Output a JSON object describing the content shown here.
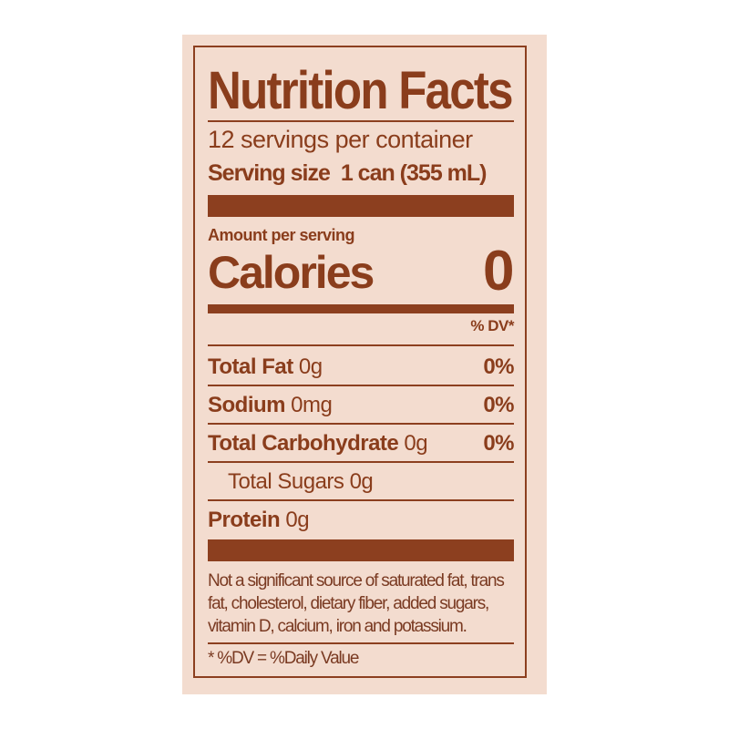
{
  "label": {
    "title": "Nutrition Facts",
    "servings_per_container": "12 servings per container",
    "serving_size_label": "Serving size",
    "serving_size_value": "1 can (355 mL)",
    "amount_per_serving": "Amount per serving",
    "calories_label": "Calories",
    "calories_value": "0",
    "dv_header": "% DV*",
    "nutrients": [
      {
        "name": "Total Fat",
        "amount": "0g",
        "dv": "0%"
      },
      {
        "name": "Sodium",
        "amount": "0mg",
        "dv": "0%"
      },
      {
        "name": "Total Carbohydrate",
        "amount": "0g",
        "dv": "0%"
      },
      {
        "name": "Total Sugars",
        "amount": "0g"
      },
      {
        "name": "Protein",
        "amount": "0g"
      }
    ],
    "footnote_lines": [
      "Not a significant source of saturated fat, trans",
      "fat, cholesterol, dietary fiber, added sugars,",
      "vitamin D, calcium, iron and potassium."
    ],
    "dv_definition": "* %DV = %Daily Value",
    "colors": {
      "ink": "#8c3f1f",
      "background": "#f3dccf"
    }
  }
}
